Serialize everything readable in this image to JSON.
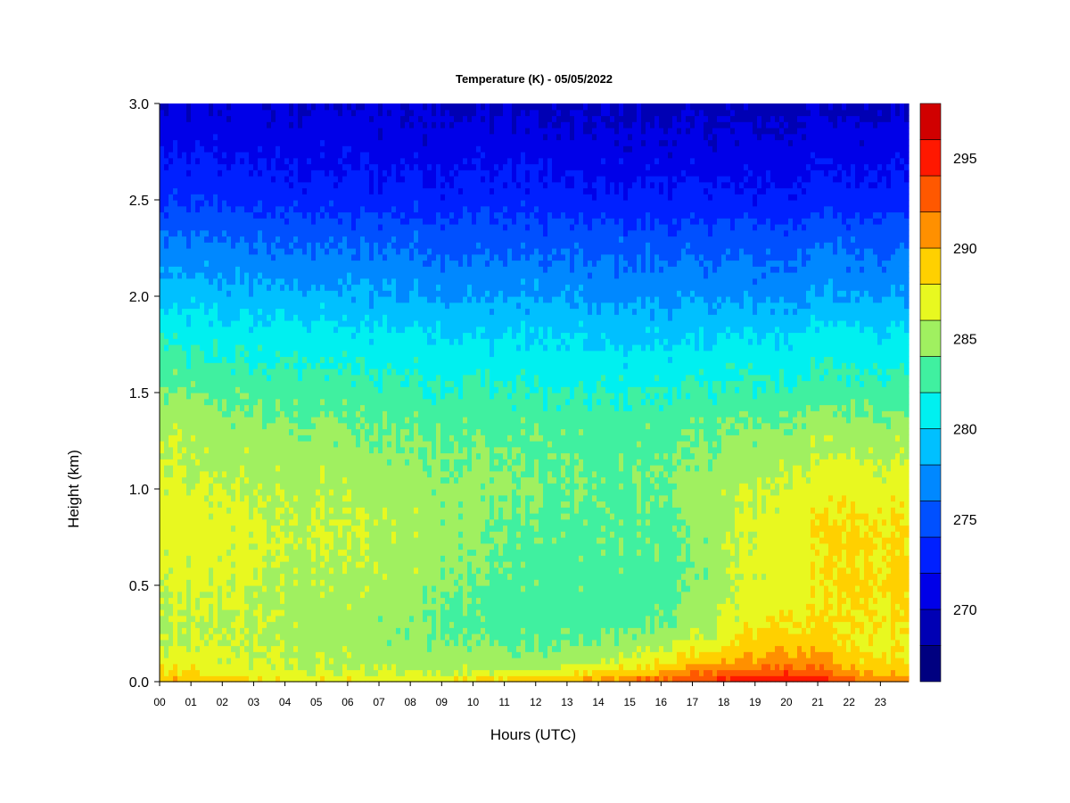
{
  "chart_data": {
    "type": "heatmap",
    "title": "Temperature (K) - 05/05/2022",
    "xlabel": "Hours (UTC)",
    "ylabel": "Height (km)",
    "x_ticks": [
      "00",
      "01",
      "02",
      "03",
      "04",
      "05",
      "06",
      "07",
      "08",
      "09",
      "10",
      "11",
      "12",
      "13",
      "14",
      "15",
      "16",
      "17",
      "18",
      "19",
      "20",
      "21",
      "22",
      "23"
    ],
    "y_ticks": [
      "0.0",
      "0.5",
      "1.0",
      "1.5",
      "2.0",
      "2.5",
      "3.0"
    ],
    "xlim": [
      0,
      23.9
    ],
    "ylim": [
      0,
      3.0
    ],
    "colorbar": {
      "ticks": [
        "270",
        "275",
        "280",
        "285",
        "290",
        "295"
      ],
      "range": [
        266,
        298
      ],
      "levels": [
        266,
        268,
        270,
        272,
        274,
        276,
        278,
        280,
        282,
        284,
        286,
        288,
        290,
        292,
        294,
        296,
        298
      ],
      "colors": [
        "#000080",
        "#0000b4",
        "#0000e8",
        "#0020ff",
        "#0050ff",
        "#0088ff",
        "#00c0ff",
        "#00f0f0",
        "#40f0a0",
        "#a0f060",
        "#e8f820",
        "#ffd000",
        "#ff9000",
        "#ff5800",
        "#ff1800",
        "#d00000",
        "#800000"
      ]
    },
    "profiles": {
      "heights_km": [
        0.0,
        0.05,
        0.1,
        0.2,
        0.3,
        0.5,
        0.8,
        1.0,
        1.3,
        1.5,
        1.8,
        2.0,
        2.3,
        2.5,
        2.8,
        3.0
      ],
      "hours": [
        0,
        2,
        4,
        6,
        8,
        10,
        12,
        14,
        16,
        17,
        18,
        19,
        20,
        21,
        22,
        23.9
      ],
      "temperature_k": [
        [
          290,
          288,
          287,
          286,
          285.5,
          286,
          287,
          286.5,
          285.5,
          284,
          281.5,
          279,
          276,
          273.5,
          271.5,
          270
        ],
        [
          289,
          287.5,
          286.5,
          286,
          286,
          286.5,
          287,
          286,
          285,
          283.5,
          281,
          279,
          276,
          273.5,
          271.5,
          270
        ],
        [
          288,
          286.5,
          286,
          285.5,
          285.5,
          285.5,
          286,
          285.5,
          284.5,
          283,
          281,
          278.5,
          275.5,
          273,
          271,
          270
        ],
        [
          288,
          286,
          285.5,
          285,
          285,
          285.5,
          286,
          285.5,
          284,
          283,
          280.5,
          278.5,
          275.5,
          273,
          271,
          270
        ],
        [
          288,
          286,
          285,
          284.5,
          284.5,
          285,
          285.5,
          285,
          284,
          282.5,
          280.5,
          278,
          275.5,
          273,
          271,
          270
        ],
        [
          289,
          286,
          285,
          284,
          283.5,
          284,
          284.5,
          284.5,
          283.5,
          282.5,
          280,
          278,
          275,
          273,
          271,
          269.5
        ],
        [
          290,
          286.5,
          285,
          283.5,
          283,
          283,
          283.5,
          284,
          283.5,
          282,
          280,
          278,
          275,
          273,
          271,
          269.5
        ],
        [
          291,
          288,
          286,
          284,
          283,
          283,
          283.5,
          283.5,
          283,
          282,
          279.5,
          277.5,
          275,
          272.5,
          270.5,
          269.5
        ],
        [
          293,
          290,
          287.5,
          285.5,
          284,
          283,
          283.5,
          284,
          283.5,
          282,
          279.5,
          277.5,
          275,
          272.5,
          270.5,
          269.5
        ],
        [
          294,
          291.5,
          289,
          286.5,
          285,
          284,
          284,
          284.5,
          283.5,
          282,
          279.5,
          277.5,
          275,
          272.5,
          270.5,
          269.5
        ],
        [
          295,
          292.5,
          290,
          287.5,
          286,
          285.5,
          285.5,
          285.5,
          284,
          282.5,
          280,
          277.5,
          275,
          272.5,
          270.5,
          269.5
        ],
        [
          295.5,
          293,
          291,
          289,
          287.5,
          286.5,
          286.5,
          286,
          284.5,
          282.5,
          280,
          277.5,
          275,
          272.5,
          270.5,
          269
        ],
        [
          296,
          293.5,
          291.5,
          289.5,
          288,
          287,
          287,
          286.5,
          284.5,
          282.5,
          280,
          277.5,
          275,
          272.5,
          270.5,
          269
        ],
        [
          295.5,
          293,
          291,
          289,
          288,
          287.5,
          288,
          287,
          285,
          283,
          280.5,
          278,
          275.5,
          273,
          271,
          269.5
        ],
        [
          293,
          290.5,
          289,
          288,
          288,
          288.5,
          288.5,
          287.5,
          285,
          283,
          280.5,
          278,
          275.5,
          273,
          271,
          269.5
        ],
        [
          291,
          289,
          288,
          287.5,
          288,
          288.5,
          288,
          287,
          285,
          283,
          280.5,
          278,
          275.5,
          273,
          271,
          269.5
        ]
      ]
    }
  }
}
